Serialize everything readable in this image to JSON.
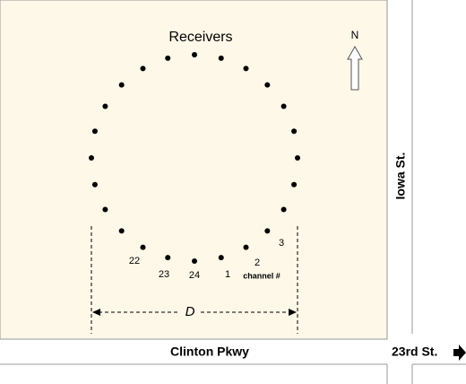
{
  "title": "Receivers",
  "north": "N",
  "distance_label": "D",
  "channels": [
    {
      "label": "1"
    },
    {
      "label": "2"
    },
    {
      "label": "3"
    },
    {
      "label": "22"
    },
    {
      "label": "23"
    },
    {
      "label": "24"
    }
  ],
  "channel_caption": "channel #",
  "streets": {
    "vertical": "Iowa St.",
    "horizontal": "Clinton Pkwy",
    "cross": "23rd St."
  }
}
